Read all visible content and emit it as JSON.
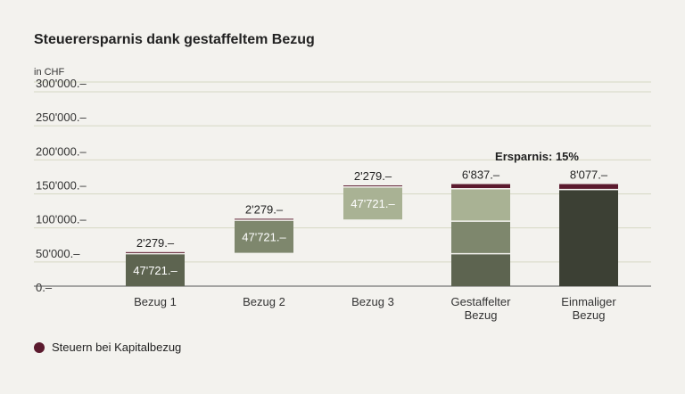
{
  "chart_data": {
    "type": "bar",
    "title": "Steuerersparnis dank gestaffeltem Bezug",
    "unit_label": "in CHF",
    "ylim": [
      0,
      300000
    ],
    "yticks": [
      {
        "value": 0,
        "label": "0.–"
      },
      {
        "value": 50000,
        "label": "50'000.–"
      },
      {
        "value": 100000,
        "label": "100'000.–"
      },
      {
        "value": 150000,
        "label": "150'000.–"
      },
      {
        "value": 200000,
        "label": "200'000.–"
      },
      {
        "value": 250000,
        "label": "250'000.–"
      },
      {
        "value": 300000,
        "label": "300'000.–"
      }
    ],
    "categories": [
      {
        "label": [
          "Bezug 1"
        ],
        "base": 0,
        "segments": [
          {
            "value": 47721,
            "color": "#5d6450",
            "label": "47'721.–"
          }
        ],
        "tax": 2279,
        "tax_label": "2'279.–"
      },
      {
        "label": [
          "Bezug 2"
        ],
        "base": 49000,
        "segments": [
          {
            "value": 47721,
            "color": "#7e876d",
            "label": "47'721.–"
          }
        ],
        "tax": 2279,
        "tax_label": "2'279.–"
      },
      {
        "label": [
          "Bezug 3"
        ],
        "base": 98000,
        "segments": [
          {
            "value": 47721,
            "color": "#a9b294",
            "label": "47'721.–"
          }
        ],
        "tax": 2279,
        "tax_label": "2'279.–"
      },
      {
        "label": [
          "Gestaffelter",
          "Bezug"
        ],
        "base": 0,
        "segments": [
          {
            "value": 47721,
            "color": "#5d6450",
            "label": ""
          },
          {
            "value": 47721,
            "color": "#7e876d",
            "label": ""
          },
          {
            "value": 47721,
            "color": "#a9b294",
            "label": ""
          }
        ],
        "tax": 6837,
        "tax_label": "6'837.–"
      },
      {
        "label": [
          "Einmaliger",
          "Bezug"
        ],
        "base": 0,
        "segments": [
          {
            "value": 141923,
            "color": "#3c4034",
            "label": ""
          }
        ],
        "tax": 8077,
        "tax_label": "8'077.–"
      }
    ],
    "tax_color": "#5b1a2e",
    "annotation": "Ersparnis: 15%",
    "legend": [
      {
        "name": "Steuern bei Kapitalbezug",
        "color": "#5b1a2e"
      }
    ]
  }
}
